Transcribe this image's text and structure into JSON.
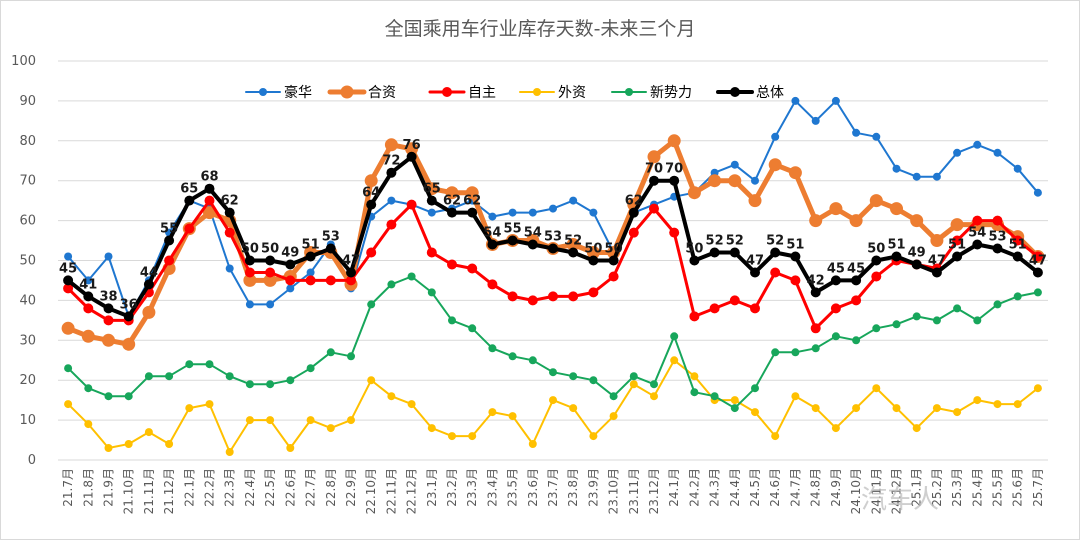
{
  "chart_data": {
    "type": "line",
    "title": "全国乘用车行业库存天数-未来三个月",
    "xlabel": "",
    "ylabel": "",
    "ylim": [
      0,
      100
    ],
    "yticks": [
      0,
      10,
      20,
      30,
      40,
      50,
      60,
      70,
      80,
      90,
      100
    ],
    "grid": true,
    "legend_position": "top",
    "categories": [
      "21.7月",
      "21.8月",
      "21.9月",
      "21.10月",
      "21.11月",
      "21.12月",
      "22.1月",
      "22.2月",
      "22.3月",
      "22.4月",
      "22.5月",
      "22.6月",
      "22.7月",
      "22.8月",
      "22.9月",
      "22.10月",
      "22.11月",
      "22.12月",
      "23.1月",
      "23.2月",
      "23.3月",
      "23.4月",
      "23.5月",
      "23.6月",
      "23.7月",
      "23.8月",
      "23.9月",
      "23.10月",
      "23.11月",
      "23.12月",
      "24.1月",
      "24.2月",
      "24.3月",
      "24.4月",
      "24.5月",
      "24.6月",
      "24.7月",
      "24.8月",
      "24.9月",
      "24.10月",
      "24.11月",
      "24.12月",
      "25.1月",
      "25.2月",
      "25.3月",
      "25.4月",
      "25.5月",
      "25.6月",
      "25.7月"
    ],
    "series": [
      {
        "name": "豪华",
        "color": "#1f77d0",
        "width": 2,
        "marker": 4,
        "values": [
          51,
          45,
          51,
          36,
          45,
          57,
          65,
          63,
          48,
          39,
          39,
          43,
          47,
          54,
          43,
          61,
          65,
          64,
          62,
          63,
          65,
          61,
          62,
          62,
          63,
          65,
          62,
          52,
          62,
          64,
          66,
          67,
          72,
          74,
          70,
          81,
          90,
          85,
          90,
          82,
          81,
          73,
          71,
          71,
          77,
          79,
          77,
          73,
          67
        ]
      },
      {
        "name": "合资",
        "color": "#ed7d31",
        "width": 5,
        "marker": 6.5,
        "values": [
          33,
          31,
          30,
          29,
          37,
          48,
          58,
          62,
          60,
          45,
          45,
          46,
          52,
          52,
          44,
          70,
          79,
          78,
          68,
          67,
          67,
          54,
          55,
          55,
          53,
          54,
          52,
          52,
          64,
          76,
          80,
          67,
          70,
          70,
          65,
          74,
          72,
          60,
          63,
          60,
          65,
          63,
          60,
          55,
          59,
          59,
          59,
          56,
          51
        ]
      },
      {
        "name": "自主",
        "color": "#ff0000",
        "width": 3,
        "marker": 5,
        "values": [
          43,
          38,
          35,
          35,
          42,
          50,
          58,
          65,
          57,
          47,
          47,
          45,
          45,
          45,
          45,
          52,
          59,
          64,
          52,
          49,
          48,
          44,
          41,
          40,
          41,
          41,
          42,
          46,
          57,
          63,
          57,
          36,
          38,
          40,
          38,
          47,
          45,
          33,
          38,
          40,
          46,
          50,
          49,
          48,
          55,
          60,
          60,
          55,
          51
        ]
      },
      {
        "name": "外资",
        "color": "#ffc000",
        "width": 2,
        "marker": 4,
        "values": [
          14,
          9,
          3,
          4,
          7,
          4,
          13,
          14,
          2,
          10,
          10,
          3,
          10,
          8,
          10,
          20,
          16,
          14,
          8,
          6,
          6,
          12,
          11,
          4,
          15,
          13,
          6,
          11,
          19,
          16,
          25,
          21,
          15,
          15,
          12,
          6,
          16,
          13,
          8,
          13,
          18,
          13,
          8,
          13,
          12,
          15,
          14,
          14,
          18
        ]
      },
      {
        "name": "新势力",
        "color": "#17a65b",
        "width": 2,
        "marker": 4,
        "values": [
          23,
          18,
          16,
          16,
          21,
          21,
          24,
          24,
          21,
          19,
          19,
          20,
          23,
          27,
          26,
          39,
          44,
          46,
          42,
          35,
          33,
          28,
          26,
          25,
          22,
          21,
          20,
          16,
          21,
          19,
          31,
          17,
          16,
          13,
          18,
          27,
          27,
          28,
          31,
          30,
          33,
          34,
          36,
          35,
          38,
          35,
          39,
          41,
          42
        ]
      },
      {
        "name": "总体",
        "color": "#000000",
        "width": 4,
        "marker": 5,
        "values": [
          45,
          41,
          38,
          36,
          44,
          55,
          65,
          68,
          62,
          50,
          50,
          49,
          51,
          53,
          47,
          64,
          72,
          76,
          65,
          62,
          62,
          54,
          55,
          54,
          53,
          52,
          50,
          50,
          62,
          70,
          70,
          50,
          52,
          52,
          47,
          52,
          51,
          42,
          45,
          45,
          50,
          51,
          49,
          47,
          51,
          54,
          53,
          51,
          47
        ]
      }
    ],
    "data_labels": {
      "series": "总体",
      "labels": [
        "45",
        "41",
        "38",
        "36",
        "44",
        "55",
        "65",
        "68",
        "62",
        "50",
        "50",
        "49",
        "51",
        "53",
        "47",
        "64",
        "72",
        "76",
        "65",
        "62",
        "62",
        "54",
        "55",
        "54",
        "53",
        "52",
        "50",
        "50",
        "62",
        "70",
        "70",
        "50",
        "52",
        "52",
        "47",
        "52",
        "51",
        "42",
        "45",
        "45",
        "50",
        "51",
        "49",
        "47",
        "51",
        "54",
        "53",
        "51",
        "47"
      ]
    },
    "watermark": "汽车人"
  }
}
